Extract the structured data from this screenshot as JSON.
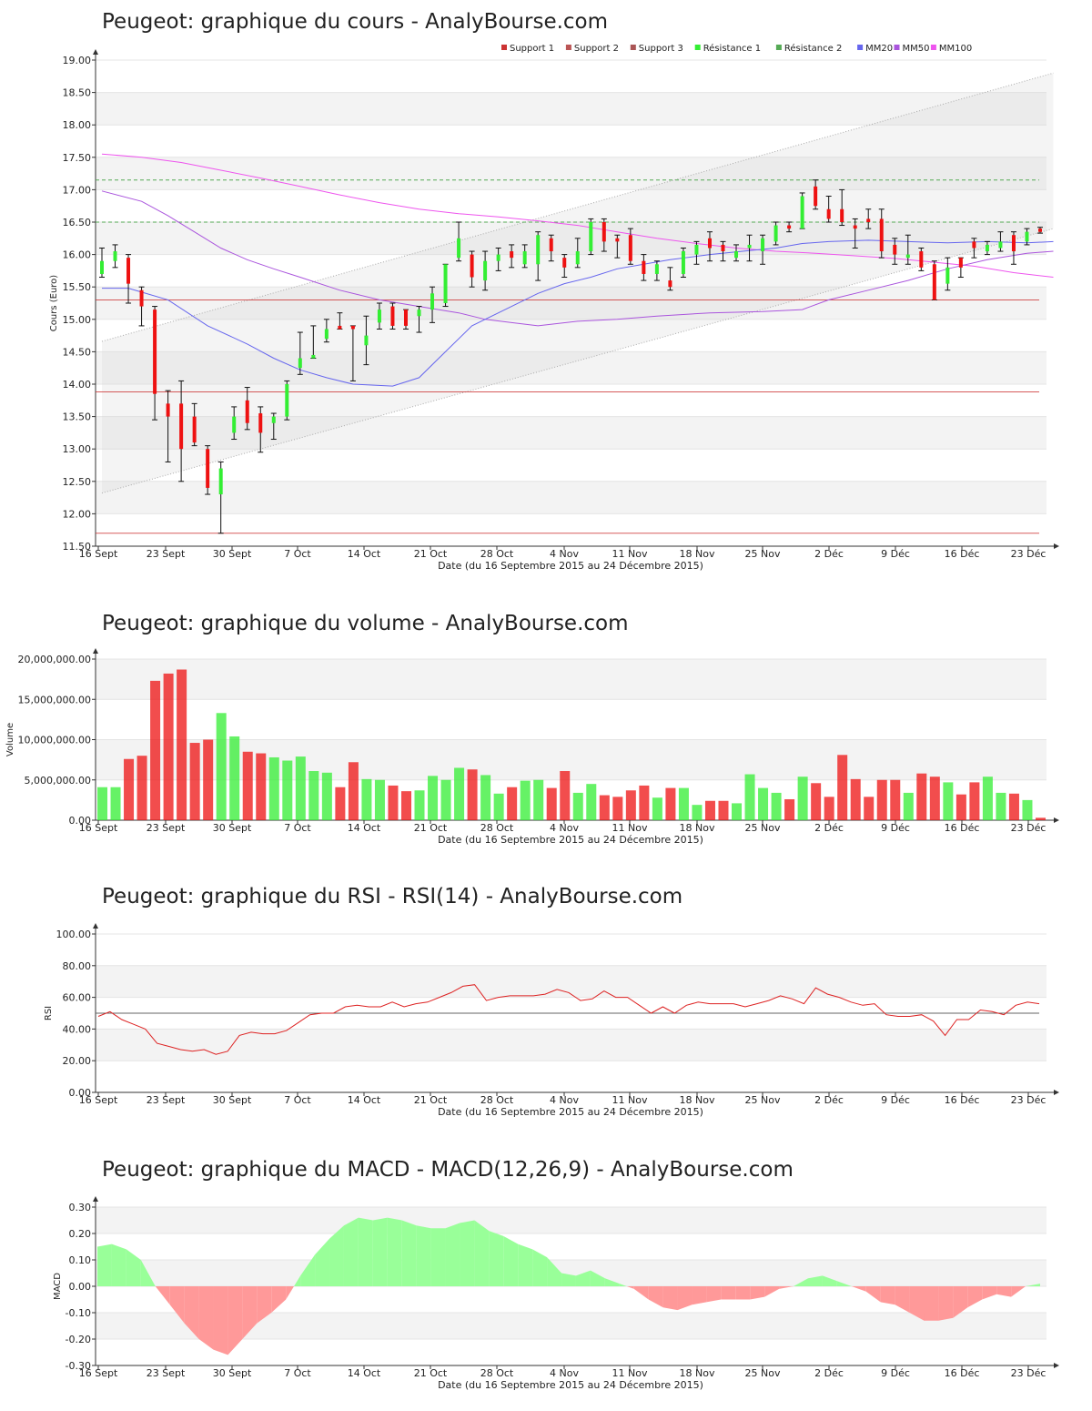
{
  "colors": {
    "up": "#33ee33",
    "down": "#ee1111",
    "support": "#cc3333",
    "resistance": "#55aa55",
    "mm20": "#6666ee",
    "mm50": "#aa55dd",
    "mm100": "#ee55ee",
    "macd_pos": "#99ff99",
    "macd_neg": "#ff9999"
  },
  "x_ticks": [
    "16 Sept",
    "23 Sept",
    "30 Sept",
    "7 Oct",
    "14 Oct",
    "21 Oct",
    "28 Oct",
    "4 Nov",
    "11 Nov",
    "18 Nov",
    "25 Nov",
    "2 Déc",
    "9 Déc",
    "16 Déc",
    "23 Déc"
  ],
  "x_label": "Date (du 16 Septembre 2015 au 24 Décembre 2015)",
  "chart_data": [
    {
      "type": "candlestick",
      "title": "Peugeot: graphique du cours - AnalyBourse.com",
      "ylabel": "Cours (Euro)",
      "ylim": [
        11.5,
        19.0
      ],
      "yticks": [
        "11.50",
        "12.00",
        "12.50",
        "13.00",
        "13.50",
        "14.00",
        "14.50",
        "15.00",
        "15.50",
        "16.00",
        "16.50",
        "17.00",
        "17.50",
        "18.00",
        "18.50",
        "19.00"
      ],
      "legend": [
        "Support 1",
        "Support 2",
        "Support 3",
        "Résistance 1",
        "Résistance 2",
        "MM20",
        "MM50",
        "MM100"
      ],
      "support_levels": [
        15.3,
        13.88,
        11.7
      ],
      "resistance_levels": [
        16.5,
        17.15
      ],
      "channel_upper": [
        [
          0,
          14.66
        ],
        [
          72,
          18.8
        ]
      ],
      "channel_lower": [
        [
          0,
          12.32
        ],
        [
          72,
          16.4
        ]
      ],
      "candles": [
        {
          "o": 15.7,
          "c": 15.9,
          "h": 16.1,
          "l": 15.65
        },
        {
          "o": 15.9,
          "c": 16.05,
          "h": 16.15,
          "l": 15.8
        },
        {
          "o": 15.95,
          "c": 15.55,
          "h": 16.0,
          "l": 15.25
        },
        {
          "o": 15.45,
          "c": 15.2,
          "h": 15.5,
          "l": 14.9
        },
        {
          "o": 15.15,
          "c": 13.85,
          "h": 15.2,
          "l": 13.45
        },
        {
          "o": 13.7,
          "c": 13.5,
          "h": 13.9,
          "l": 12.8
        },
        {
          "o": 13.7,
          "c": 13.0,
          "h": 14.05,
          "l": 12.5
        },
        {
          "o": 13.5,
          "c": 13.1,
          "h": 13.7,
          "l": 13.05
        },
        {
          "o": 13.0,
          "c": 12.4,
          "h": 13.05,
          "l": 12.3
        },
        {
          "o": 12.3,
          "c": 12.7,
          "h": 12.8,
          "l": 11.7
        },
        {
          "o": 13.25,
          "c": 13.5,
          "h": 13.65,
          "l": 13.15
        },
        {
          "o": 13.75,
          "c": 13.4,
          "h": 13.95,
          "l": 13.3
        },
        {
          "o": 13.55,
          "c": 13.25,
          "h": 13.65,
          "l": 12.95
        },
        {
          "o": 13.4,
          "c": 13.5,
          "h": 13.55,
          "l": 13.15
        },
        {
          "o": 13.5,
          "c": 14.0,
          "h": 14.05,
          "l": 13.45
        },
        {
          "o": 14.25,
          "c": 14.4,
          "h": 14.8,
          "l": 14.15
        },
        {
          "o": 14.4,
          "c": 14.45,
          "h": 14.9,
          "l": 14.4
        },
        {
          "o": 14.7,
          "c": 14.85,
          "h": 15.0,
          "l": 14.65
        },
        {
          "o": 14.9,
          "c": 14.85,
          "h": 15.1,
          "l": 14.85
        },
        {
          "o": 14.9,
          "c": 14.85,
          "h": 14.9,
          "l": 14.05
        },
        {
          "o": 14.6,
          "c": 14.75,
          "h": 15.05,
          "l": 14.3
        },
        {
          "o": 14.95,
          "c": 15.15,
          "h": 15.25,
          "l": 14.85
        },
        {
          "o": 15.2,
          "c": 14.9,
          "h": 15.25,
          "l": 14.85
        },
        {
          "o": 15.15,
          "c": 14.9,
          "h": 15.15,
          "l": 14.85
        },
        {
          "o": 15.05,
          "c": 15.15,
          "h": 15.2,
          "l": 14.8
        },
        {
          "o": 15.15,
          "c": 15.4,
          "h": 15.5,
          "l": 14.95
        },
        {
          "o": 15.25,
          "c": 15.85,
          "h": 15.85,
          "l": 15.2
        },
        {
          "o": 15.95,
          "c": 16.25,
          "h": 16.5,
          "l": 15.9
        },
        {
          "o": 16.0,
          "c": 15.65,
          "h": 16.05,
          "l": 15.5
        },
        {
          "o": 15.6,
          "c": 15.9,
          "h": 16.05,
          "l": 15.45
        },
        {
          "o": 15.9,
          "c": 16.0,
          "h": 16.1,
          "l": 15.75
        },
        {
          "o": 16.05,
          "c": 15.95,
          "h": 16.15,
          "l": 15.8
        },
        {
          "o": 15.85,
          "c": 16.05,
          "h": 16.15,
          "l": 15.8
        },
        {
          "o": 15.85,
          "c": 16.3,
          "h": 16.35,
          "l": 15.6
        },
        {
          "o": 16.25,
          "c": 16.05,
          "h": 16.3,
          "l": 15.9
        },
        {
          "o": 15.95,
          "c": 15.8,
          "h": 16.0,
          "l": 15.65
        },
        {
          "o": 15.85,
          "c": 16.05,
          "h": 16.25,
          "l": 15.8
        },
        {
          "o": 16.05,
          "c": 16.5,
          "h": 16.55,
          "l": 16.0
        },
        {
          "o": 16.5,
          "c": 16.2,
          "h": 16.55,
          "l": 16.05
        },
        {
          "o": 16.25,
          "c": 16.2,
          "h": 16.3,
          "l": 15.95
        },
        {
          "o": 16.3,
          "c": 15.9,
          "h": 16.4,
          "l": 15.85
        },
        {
          "o": 15.9,
          "c": 15.7,
          "h": 16.0,
          "l": 15.6
        },
        {
          "o": 15.7,
          "c": 15.85,
          "h": 15.9,
          "l": 15.6
        },
        {
          "o": 15.6,
          "c": 15.5,
          "h": 15.8,
          "l": 15.45
        },
        {
          "o": 15.7,
          "c": 16.05,
          "h": 16.1,
          "l": 15.65
        },
        {
          "o": 16.0,
          "c": 16.15,
          "h": 16.2,
          "l": 15.85
        },
        {
          "o": 16.25,
          "c": 16.1,
          "h": 16.35,
          "l": 15.9
        },
        {
          "o": 16.15,
          "c": 16.05,
          "h": 16.2,
          "l": 15.9
        },
        {
          "o": 15.95,
          "c": 16.05,
          "h": 16.15,
          "l": 15.9
        },
        {
          "o": 16.1,
          "c": 16.15,
          "h": 16.3,
          "l": 15.9
        },
        {
          "o": 16.05,
          "c": 16.25,
          "h": 16.3,
          "l": 15.85
        },
        {
          "o": 16.2,
          "c": 16.45,
          "h": 16.5,
          "l": 16.15
        },
        {
          "o": 16.45,
          "c": 16.4,
          "h": 16.5,
          "l": 16.35
        },
        {
          "o": 16.4,
          "c": 16.9,
          "h": 16.95,
          "l": 16.4
        },
        {
          "o": 17.05,
          "c": 16.75,
          "h": 17.15,
          "l": 16.7
        },
        {
          "o": 16.7,
          "c": 16.55,
          "h": 16.9,
          "l": 16.5
        },
        {
          "o": 16.7,
          "c": 16.5,
          "h": 17.0,
          "l": 16.45
        },
        {
          "o": 16.45,
          "c": 16.4,
          "h": 16.55,
          "l": 16.1
        },
        {
          "o": 16.55,
          "c": 16.5,
          "h": 16.7,
          "l": 16.4
        },
        {
          "o": 16.55,
          "c": 16.05,
          "h": 16.7,
          "l": 15.95
        },
        {
          "o": 16.15,
          "c": 16.0,
          "h": 16.25,
          "l": 15.85
        },
        {
          "o": 15.95,
          "c": 16.0,
          "h": 16.3,
          "l": 15.85
        },
        {
          "o": 16.05,
          "c": 15.8,
          "h": 16.1,
          "l": 15.75
        },
        {
          "o": 15.85,
          "c": 15.3,
          "h": 15.9,
          "l": 15.3
        },
        {
          "o": 15.55,
          "c": 15.8,
          "h": 15.95,
          "l": 15.45
        },
        {
          "o": 15.95,
          "c": 15.8,
          "h": 15.95,
          "l": 15.65
        },
        {
          "o": 16.2,
          "c": 16.1,
          "h": 16.25,
          "l": 15.95
        },
        {
          "o": 16.05,
          "c": 16.15,
          "h": 16.2,
          "l": 16.0
        },
        {
          "o": 16.1,
          "c": 16.2,
          "h": 16.35,
          "l": 16.05
        },
        {
          "o": 16.3,
          "c": 16.05,
          "h": 16.35,
          "l": 15.85
        },
        {
          "o": 16.2,
          "c": 16.35,
          "h": 16.4,
          "l": 16.15
        },
        {
          "o": 16.4,
          "c": 16.35,
          "h": 16.42,
          "l": 16.33
        }
      ],
      "mm20": [
        [
          0,
          15.48
        ],
        [
          2,
          15.48
        ],
        [
          3,
          15.42
        ],
        [
          5,
          15.3
        ],
        [
          8,
          14.9
        ],
        [
          11,
          14.62
        ],
        [
          13,
          14.4
        ],
        [
          15,
          14.22
        ],
        [
          17,
          14.1
        ],
        [
          19,
          14.0
        ],
        [
          22,
          13.97
        ],
        [
          24,
          14.1
        ],
        [
          26,
          14.5
        ],
        [
          28,
          14.9
        ],
        [
          31,
          15.2
        ],
        [
          33,
          15.4
        ],
        [
          35,
          15.55
        ],
        [
          37,
          15.65
        ],
        [
          39,
          15.78
        ],
        [
          41,
          15.85
        ],
        [
          43,
          15.92
        ],
        [
          46,
          16.0
        ],
        [
          49,
          16.06
        ],
        [
          51,
          16.1
        ],
        [
          53,
          16.17
        ],
        [
          55,
          16.2
        ],
        [
          58,
          16.22
        ],
        [
          61,
          16.2
        ],
        [
          64,
          16.18
        ],
        [
          67,
          16.2
        ],
        [
          70,
          16.18
        ],
        [
          72,
          16.2
        ]
      ],
      "mm50": [
        [
          0,
          16.98
        ],
        [
          3,
          16.82
        ],
        [
          5,
          16.6
        ],
        [
          7,
          16.35
        ],
        [
          9,
          16.1
        ],
        [
          11,
          15.92
        ],
        [
          13,
          15.78
        ],
        [
          15,
          15.65
        ],
        [
          18,
          15.45
        ],
        [
          21,
          15.3
        ],
        [
          24,
          15.2
        ],
        [
          27,
          15.1
        ],
        [
          29,
          15.0
        ],
        [
          31,
          14.95
        ],
        [
          33,
          14.9
        ],
        [
          36,
          14.97
        ],
        [
          39,
          15.0
        ],
        [
          42,
          15.05
        ],
        [
          46,
          15.1
        ],
        [
          50,
          15.12
        ],
        [
          53,
          15.15
        ],
        [
          55,
          15.3
        ],
        [
          58,
          15.45
        ],
        [
          61,
          15.6
        ],
        [
          64,
          15.78
        ],
        [
          67,
          15.92
        ],
        [
          70,
          16.02
        ],
        [
          72,
          16.05
        ]
      ],
      "mm100": [
        [
          0,
          17.55
        ],
        [
          3,
          17.5
        ],
        [
          6,
          17.42
        ],
        [
          9,
          17.3
        ],
        [
          12,
          17.18
        ],
        [
          15,
          17.05
        ],
        [
          18,
          16.92
        ],
        [
          21,
          16.8
        ],
        [
          24,
          16.7
        ],
        [
          27,
          16.63
        ],
        [
          30,
          16.58
        ],
        [
          33,
          16.52
        ],
        [
          36,
          16.45
        ],
        [
          39,
          16.35
        ],
        [
          42,
          16.25
        ],
        [
          45,
          16.17
        ],
        [
          48,
          16.1
        ],
        [
          51,
          16.05
        ],
        [
          54,
          16.02
        ],
        [
          57,
          15.98
        ],
        [
          60,
          15.94
        ],
        [
          63,
          15.88
        ],
        [
          66,
          15.82
        ],
        [
          69,
          15.72
        ],
        [
          72,
          15.65
        ]
      ]
    },
    {
      "type": "bar",
      "title": "Peugeot: graphique du volume - AnalyBourse.com",
      "ylabel": "Volume",
      "ylim": [
        0,
        20000000
      ],
      "yticks": [
        "0.00",
        "5,000,000.00",
        "10,000,000.00",
        "15,000,000.00",
        "20,000,000.00"
      ],
      "values": [
        4100000,
        4100000,
        7600000,
        8000000,
        17300000,
        18200000,
        18700000,
        9600000,
        10000000,
        13300000,
        10400000,
        8500000,
        8300000,
        7800000,
        7400000,
        7900000,
        6100000,
        5900000,
        4100000,
        7200000,
        5100000,
        5000000,
        4300000,
        3600000,
        3700000,
        5500000,
        5000000,
        6500000,
        6300000,
        5600000,
        3300000,
        4100000,
        4900000,
        5000000,
        4000000,
        6100000,
        3400000,
        4500000,
        3100000,
        2900000,
        3700000,
        4300000,
        2800000,
        4000000,
        4000000,
        1900000,
        2400000,
        2400000,
        2100000,
        5700000,
        4000000,
        3400000,
        2600000,
        5400000,
        4600000,
        2900000,
        8100000,
        5100000,
        2900000,
        5000000,
        5000000,
        3400000,
        5800000,
        5400000,
        4700000,
        3200000,
        4700000,
        5400000,
        3400000,
        3300000,
        2500000,
        300000
      ]
    },
    {
      "type": "line",
      "title": "Peugeot: graphique du RSI - RSI(14) - AnalyBourse.com",
      "ylabel": "RSI",
      "ylim": [
        0,
        100
      ],
      "yticks": [
        "0.00",
        "20.00",
        "40.00",
        "60.00",
        "80.00",
        "100.00"
      ],
      "reference": 50,
      "values": [
        48,
        51,
        46,
        43,
        40,
        31,
        29,
        27,
        26,
        27,
        24,
        26,
        36,
        38,
        37,
        37,
        39,
        44,
        49,
        50,
        50,
        54,
        55,
        54,
        54,
        57,
        54,
        56,
        57,
        60,
        63,
        67,
        68,
        58,
        60,
        61,
        61,
        61,
        62,
        65,
        63,
        58,
        59,
        64,
        60,
        60,
        55,
        50,
        54,
        50,
        55,
        57,
        56,
        56,
        56,
        54,
        56,
        58,
        61,
        59,
        56,
        66,
        62,
        60,
        57,
        55,
        56,
        49,
        48,
        48,
        49,
        45,
        36,
        46,
        46,
        52,
        51,
        49,
        55,
        57,
        56
      ]
    },
    {
      "type": "area",
      "title": "Peugeot: graphique du MACD - MACD(12,26,9) - AnalyBourse.com",
      "ylabel": "MACD",
      "ylim": [
        -0.3,
        0.3
      ],
      "yticks": [
        "-0.30",
        "-0.20",
        "-0.10",
        "0.00",
        "0.10",
        "0.20",
        "0.30"
      ],
      "values": [
        0.15,
        0.16,
        0.14,
        0.1,
        0.0,
        -0.07,
        -0.14,
        -0.2,
        -0.24,
        -0.26,
        -0.2,
        -0.14,
        -0.1,
        -0.05,
        0.04,
        0.12,
        0.18,
        0.23,
        0.26,
        0.25,
        0.26,
        0.25,
        0.23,
        0.22,
        0.22,
        0.24,
        0.25,
        0.21,
        0.19,
        0.16,
        0.14,
        0.11,
        0.05,
        0.04,
        0.06,
        0.03,
        0.01,
        -0.01,
        -0.05,
        -0.08,
        -0.09,
        -0.07,
        -0.06,
        -0.05,
        -0.05,
        -0.05,
        -0.04,
        -0.01,
        0.0,
        0.03,
        0.04,
        0.02,
        0.0,
        -0.02,
        -0.06,
        -0.07,
        -0.1,
        -0.13,
        -0.13,
        -0.12,
        -0.08,
        -0.05,
        -0.03,
        -0.04,
        0.0,
        0.01
      ]
    }
  ]
}
